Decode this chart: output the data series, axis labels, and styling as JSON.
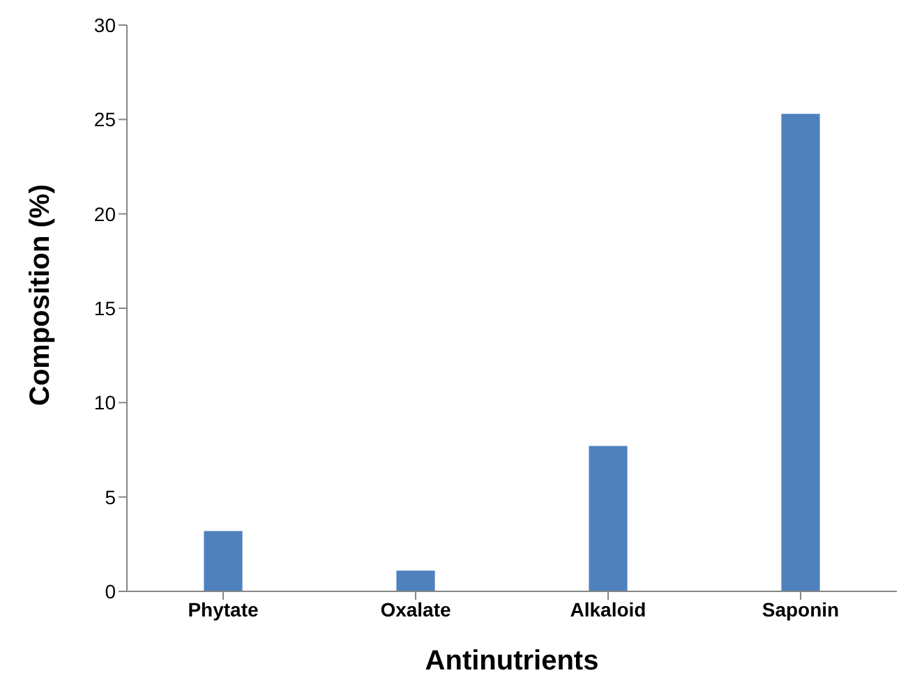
{
  "chart_data": {
    "type": "bar",
    "xlabel": "Antinutrients",
    "ylabel": "Composition (%)",
    "categories": [
      "Phytate",
      "Oxalate",
      "Alkaloid",
      "Saponin"
    ],
    "values": [
      3.2,
      1.1,
      7.7,
      25.3
    ],
    "color": "#4f81bd",
    "ylim": [
      0,
      30
    ],
    "yticks": [
      0,
      5,
      10,
      15,
      20,
      25,
      30
    ],
    "grid": false,
    "legend": false
  }
}
